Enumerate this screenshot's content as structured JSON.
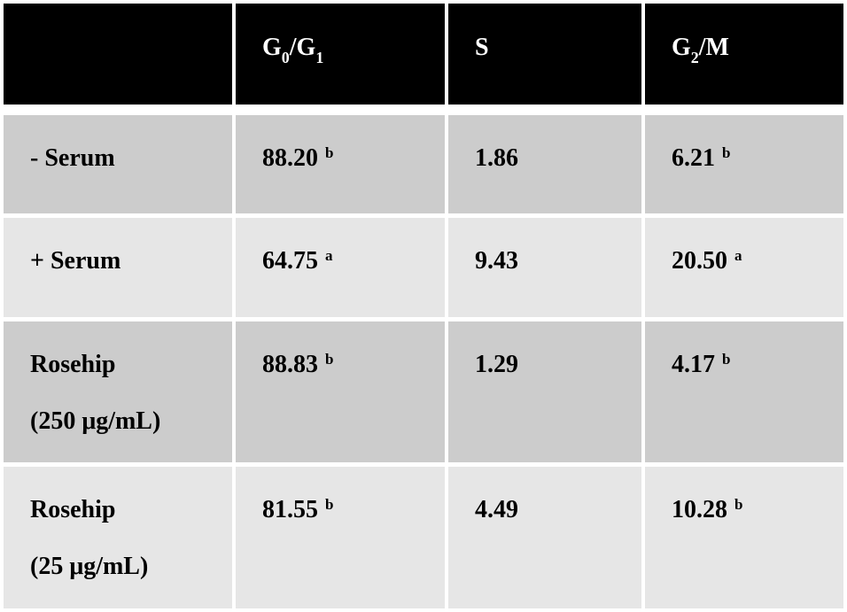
{
  "table": {
    "header": {
      "col0": "",
      "g0g1": {
        "g1": "G",
        "sub1": "0",
        "slash": "/G",
        "sub2": "1"
      },
      "s": "S",
      "g2m": {
        "g": "G",
        "sub": "2",
        "rest": "/M"
      }
    },
    "rows": [
      {
        "label": "- Serum",
        "label2": "",
        "g0g1": "88.20",
        "g0g1_sup": "b",
        "s": "1.86",
        "g2m": "6.21",
        "g2m_sup": "b"
      },
      {
        "label": "+ Serum",
        "label2": "",
        "g0g1": "64.75",
        "g0g1_sup": "a",
        "s": "9.43",
        "g2m": "20.50",
        "g2m_sup": "a"
      },
      {
        "label": "Rosehip",
        "label2": "(250 μg/mL)",
        "g0g1": "88.83",
        "g0g1_sup": "b",
        "s": "1.29",
        "g2m": "4.17",
        "g2m_sup": "b"
      },
      {
        "label": "Rosehip",
        "label2": "(25 μg/mL)",
        "g0g1": "81.55",
        "g0g1_sup": "b",
        "s": "4.49",
        "g2m": "10.28",
        "g2m_sup": "b"
      }
    ]
  }
}
